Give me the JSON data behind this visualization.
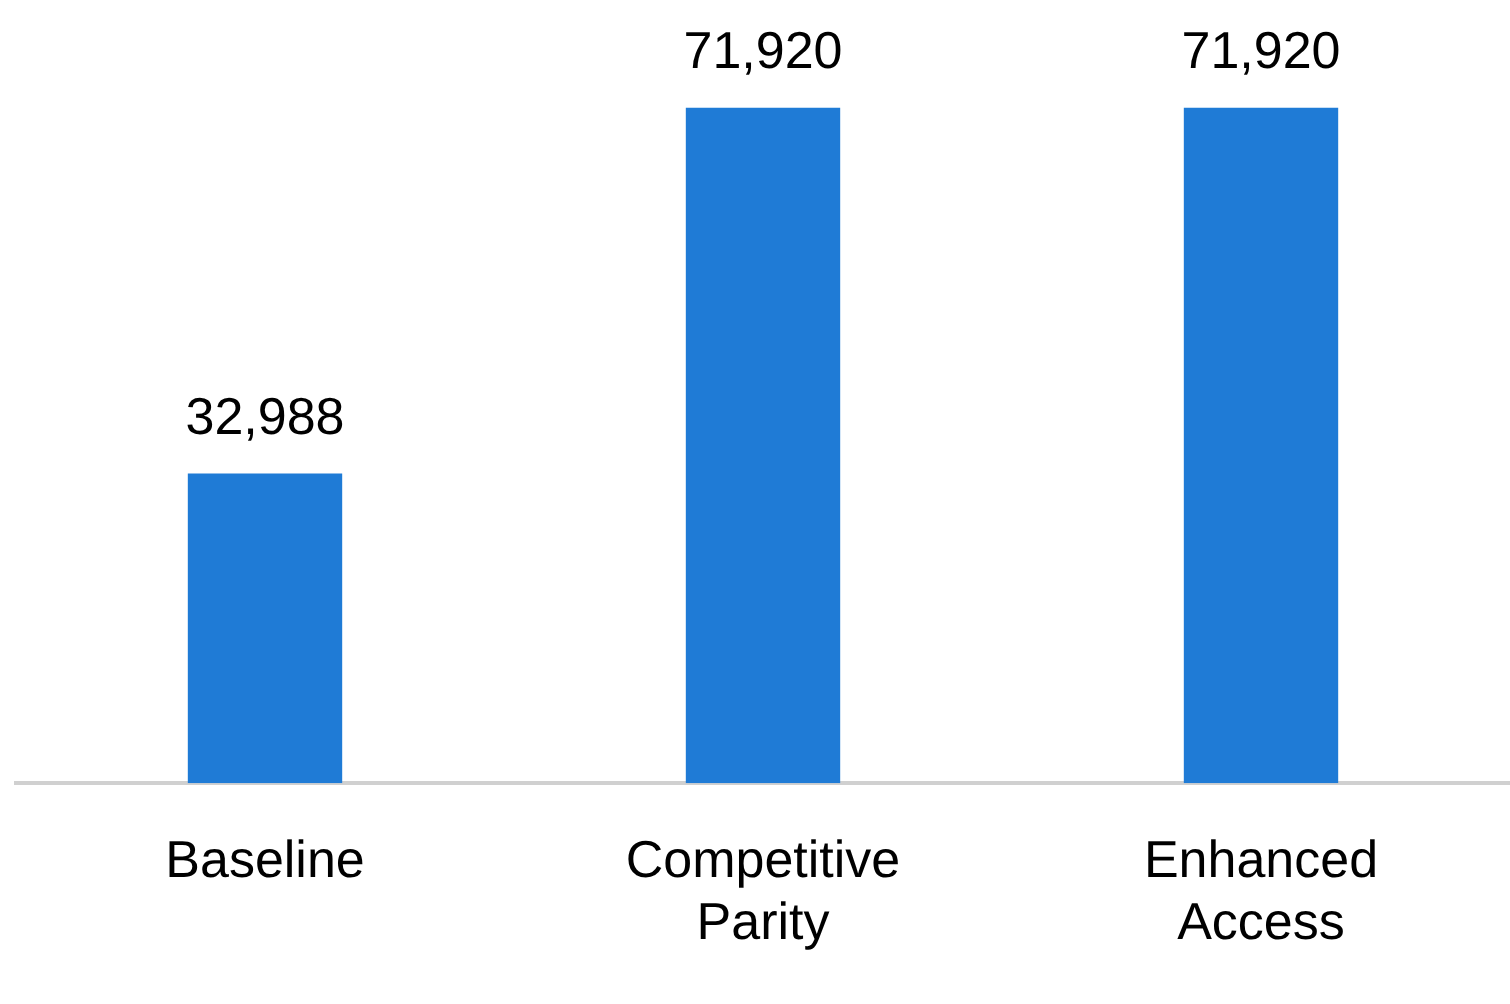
{
  "chart_data": {
    "type": "bar",
    "categories": [
      "Baseline",
      "Competitive Parity",
      "Enhanced Access"
    ],
    "values": [
      32988,
      71920,
      71920
    ],
    "value_labels": [
      "32,988",
      "71,920",
      "71,920"
    ],
    "color": "#1f7bd6",
    "grid": false,
    "legend": false
  }
}
